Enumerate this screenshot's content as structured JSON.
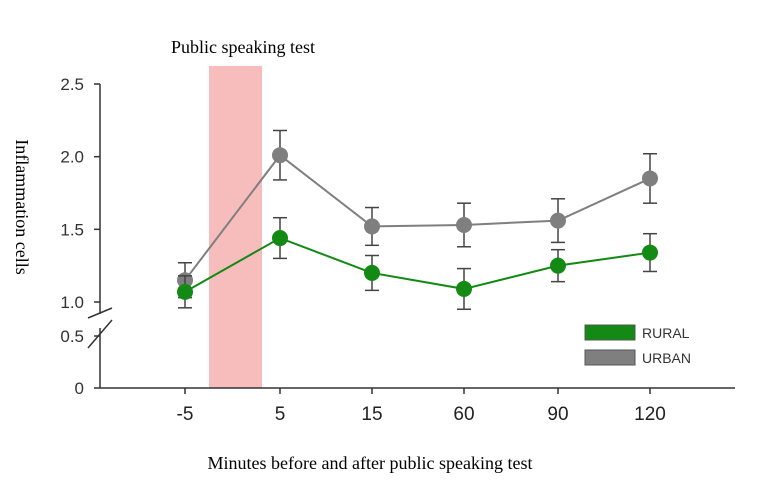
{
  "chart_data": {
    "type": "line",
    "annotation": "Public speaking test",
    "xlabel": "Minutes before and after public speaking test",
    "ylabel": "Inflammation cells",
    "categories": [
      "-5",
      "5",
      "15",
      "60",
      "90",
      "120"
    ],
    "y_ticks_lower": [
      "0",
      "0.5"
    ],
    "y_ticks_upper": [
      "1.0",
      "1.5",
      "2.0",
      "2.5"
    ],
    "y_tick_values_lower": [
      0,
      0.5
    ],
    "y_tick_values_upper": [
      1.0,
      1.5,
      2.0,
      2.5
    ],
    "ylim": [
      0,
      2.5
    ],
    "axis_break": true,
    "shaded_region": {
      "from_category": "-5",
      "to_category": "5",
      "color": "#f7bcbc"
    },
    "series": [
      {
        "name": "URBAN",
        "color": "#7f7f7f",
        "values": [
          1.15,
          2.01,
          1.52,
          1.53,
          1.56,
          1.85
        ],
        "error": [
          0.12,
          0.17,
          0.13,
          0.15,
          0.15,
          0.17
        ]
      },
      {
        "name": "RURAL",
        "color": "#138a13",
        "values": [
          1.07,
          1.44,
          1.2,
          1.09,
          1.25,
          1.34
        ],
        "error": [
          0.11,
          0.14,
          0.12,
          0.14,
          0.11,
          0.13
        ]
      }
    ],
    "legend": {
      "position": "bottom-right",
      "order": [
        "RURAL",
        "URBAN"
      ]
    },
    "grid": false
  }
}
